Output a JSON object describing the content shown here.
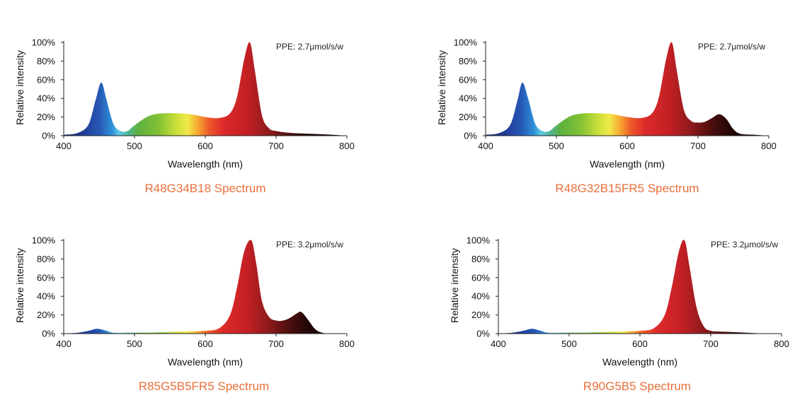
{
  "chart_data": [
    {
      "type": "area",
      "title": "R48G34B18 Spectrum",
      "annotation": "PPE:  2.7μmol/s/w",
      "xlabel": "Wavelength (nm)",
      "ylabel": "Relative intensity",
      "xlim": [
        400,
        800
      ],
      "ylim": [
        0,
        100
      ],
      "xticks": [
        "400",
        "500",
        "600",
        "700",
        "800"
      ],
      "yticks": [
        "0%",
        "20%",
        "40%",
        "60%",
        "80%",
        "100%"
      ],
      "x": [
        400,
        420,
        435,
        445,
        453,
        460,
        470,
        480,
        490,
        500,
        520,
        540,
        560,
        580,
        600,
        620,
        635,
        645,
        655,
        663,
        670,
        680,
        690,
        700,
        720,
        750,
        780,
        800
      ],
      "y": [
        1,
        3,
        12,
        38,
        57,
        40,
        13,
        5,
        5,
        11,
        21,
        24,
        24,
        23,
        20,
        19,
        24,
        42,
        82,
        100,
        70,
        22,
        8,
        5,
        3,
        2,
        1,
        0
      ]
    },
    {
      "type": "area",
      "title": "R48G32B15FR5 Spectrum",
      "annotation": "PPE:  2.7μmol/s/w",
      "xlabel": "Wavelength (nm)",
      "ylabel": "Relative intensity",
      "xlim": [
        400,
        800
      ],
      "ylim": [
        0,
        100
      ],
      "xticks": [
        "400",
        "500",
        "600",
        "700",
        "800"
      ],
      "yticks": [
        "0%",
        "20%",
        "40%",
        "60%",
        "80%",
        "100%"
      ],
      "x": [
        400,
        420,
        435,
        445,
        452,
        460,
        470,
        480,
        490,
        500,
        520,
        540,
        560,
        580,
        600,
        620,
        635,
        645,
        655,
        663,
        670,
        680,
        690,
        700,
        710,
        720,
        730,
        740,
        750,
        760,
        780,
        800
      ],
      "y": [
        1,
        3,
        12,
        38,
        57,
        40,
        13,
        5,
        5,
        11,
        21,
        24,
        24,
        23,
        20,
        19,
        24,
        42,
        82,
        100,
        70,
        28,
        16,
        14,
        15,
        19,
        23,
        18,
        7,
        2,
        1,
        0
      ]
    },
    {
      "type": "area",
      "title": "R85G5B5FR5 Spectrum",
      "annotation": "PPE:  3.2μmol/s/w",
      "xlabel": "Wavelength (nm)",
      "ylabel": "Relative intensity",
      "xlim": [
        400,
        800
      ],
      "ylim": [
        0,
        100
      ],
      "xticks": [
        "400",
        "500",
        "600",
        "700",
        "800"
      ],
      "yticks": [
        "0%",
        "20%",
        "40%",
        "60%",
        "80%",
        "100%"
      ],
      "x": [
        400,
        420,
        435,
        445,
        450,
        460,
        470,
        490,
        520,
        560,
        600,
        620,
        635,
        645,
        655,
        665,
        672,
        680,
        690,
        700,
        710,
        720,
        730,
        736,
        745,
        755,
        765,
        780,
        800
      ],
      "y": [
        0,
        1,
        3,
        5,
        5,
        3,
        1,
        1,
        1,
        2,
        3,
        6,
        20,
        50,
        88,
        100,
        75,
        35,
        18,
        14,
        14,
        17,
        22,
        23,
        15,
        5,
        1,
        0,
        0
      ]
    },
    {
      "type": "area",
      "title": "R90G5B5 Spectrum",
      "annotation": "PPE:  3.2μmol/s/w",
      "xlabel": "Wavelength (nm)",
      "ylabel": "Relative intensity",
      "xlim": [
        400,
        800
      ],
      "ylim": [
        0,
        100
      ],
      "xticks": [
        "400",
        "500",
        "600",
        "700",
        "800"
      ],
      "yticks": [
        "0%",
        "20%",
        "40%",
        "60%",
        "80%",
        "100%"
      ],
      "x": [
        400,
        420,
        435,
        445,
        450,
        460,
        470,
        490,
        520,
        560,
        600,
        620,
        635,
        645,
        655,
        663,
        670,
        680,
        690,
        700,
        720,
        750,
        780,
        800
      ],
      "y": [
        0,
        1,
        3,
        5,
        5,
        3,
        1,
        1,
        1,
        2,
        3,
        6,
        20,
        50,
        88,
        100,
        72,
        28,
        8,
        3,
        2,
        1,
        0,
        0
      ]
    }
  ]
}
